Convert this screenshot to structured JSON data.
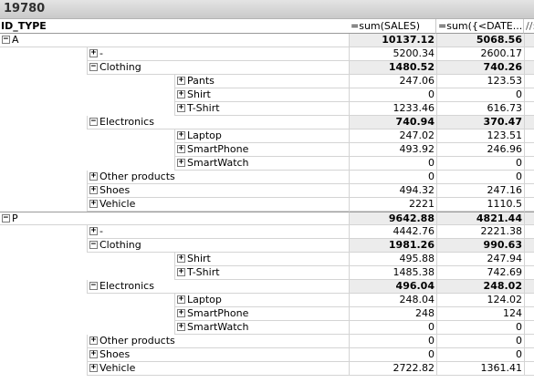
{
  "window": {
    "title": "19780"
  },
  "header": {
    "dimension": "ID_TYPE",
    "expr1": "=sum(SALES)",
    "expr2": "=sum({<DATE...",
    "expr3": "//:"
  },
  "rows": [
    {
      "level": 0,
      "toggle": "minus",
      "label": "A",
      "v1": "10137.12",
      "v2": "5068.56",
      "bold": true,
      "sub": true
    },
    {
      "level": 1,
      "toggle": "plus",
      "label": "-",
      "v1": "5200.34",
      "v2": "2600.17"
    },
    {
      "level": 1,
      "toggle": "minus",
      "label": "Clothing",
      "v1": "1480.52",
      "v2": "740.26",
      "bold": true,
      "sub": true
    },
    {
      "level": 2,
      "toggle": "plus",
      "label": "Pants",
      "v1": "247.06",
      "v2": "123.53"
    },
    {
      "level": 2,
      "toggle": "plus",
      "label": "Shirt",
      "v1": "0",
      "v2": "0"
    },
    {
      "level": 2,
      "toggle": "plus",
      "label": "T-Shirt",
      "v1": "1233.46",
      "v2": "616.73"
    },
    {
      "level": 1,
      "toggle": "minus",
      "label": "Electronics",
      "v1": "740.94",
      "v2": "370.47",
      "bold": true,
      "sub": true
    },
    {
      "level": 2,
      "toggle": "plus",
      "label": "Laptop",
      "v1": "247.02",
      "v2": "123.51"
    },
    {
      "level": 2,
      "toggle": "plus",
      "label": "SmartPhone",
      "v1": "493.92",
      "v2": "246.96"
    },
    {
      "level": 2,
      "toggle": "plus",
      "label": "SmartWatch",
      "v1": "0",
      "v2": "0"
    },
    {
      "level": 1,
      "toggle": "plus",
      "label": "Other products",
      "v1": "0",
      "v2": "0"
    },
    {
      "level": 1,
      "toggle": "plus",
      "label": "Shoes",
      "v1": "494.32",
      "v2": "247.16"
    },
    {
      "level": 1,
      "toggle": "plus",
      "label": "Vehicle",
      "v1": "2221",
      "v2": "1110.5"
    },
    {
      "level": 0,
      "toggle": "minus",
      "label": "P",
      "v1": "9642.88",
      "v2": "4821.44",
      "bold": true,
      "sub": true,
      "top": true
    },
    {
      "level": 1,
      "toggle": "plus",
      "label": "-",
      "v1": "4442.76",
      "v2": "2221.38"
    },
    {
      "level": 1,
      "toggle": "minus",
      "label": "Clothing",
      "v1": "1981.26",
      "v2": "990.63",
      "bold": true,
      "sub": true
    },
    {
      "level": 2,
      "toggle": "plus",
      "label": "Shirt",
      "v1": "495.88",
      "v2": "247.94"
    },
    {
      "level": 2,
      "toggle": "plus",
      "label": "T-Shirt",
      "v1": "1485.38",
      "v2": "742.69"
    },
    {
      "level": 1,
      "toggle": "minus",
      "label": "Electronics",
      "v1": "496.04",
      "v2": "248.02",
      "bold": true,
      "sub": true
    },
    {
      "level": 2,
      "toggle": "plus",
      "label": "Laptop",
      "v1": "248.04",
      "v2": "124.02"
    },
    {
      "level": 2,
      "toggle": "plus",
      "label": "SmartPhone",
      "v1": "248",
      "v2": "124"
    },
    {
      "level": 2,
      "toggle": "plus",
      "label": "SmartWatch",
      "v1": "0",
      "v2": "0"
    },
    {
      "level": 1,
      "toggle": "plus",
      "label": "Other products",
      "v1": "0",
      "v2": "0"
    },
    {
      "level": 1,
      "toggle": "plus",
      "label": "Shoes",
      "v1": "0",
      "v2": "0"
    },
    {
      "level": 1,
      "toggle": "plus",
      "label": "Vehicle",
      "v1": "2722.82",
      "v2": "1361.41"
    }
  ]
}
